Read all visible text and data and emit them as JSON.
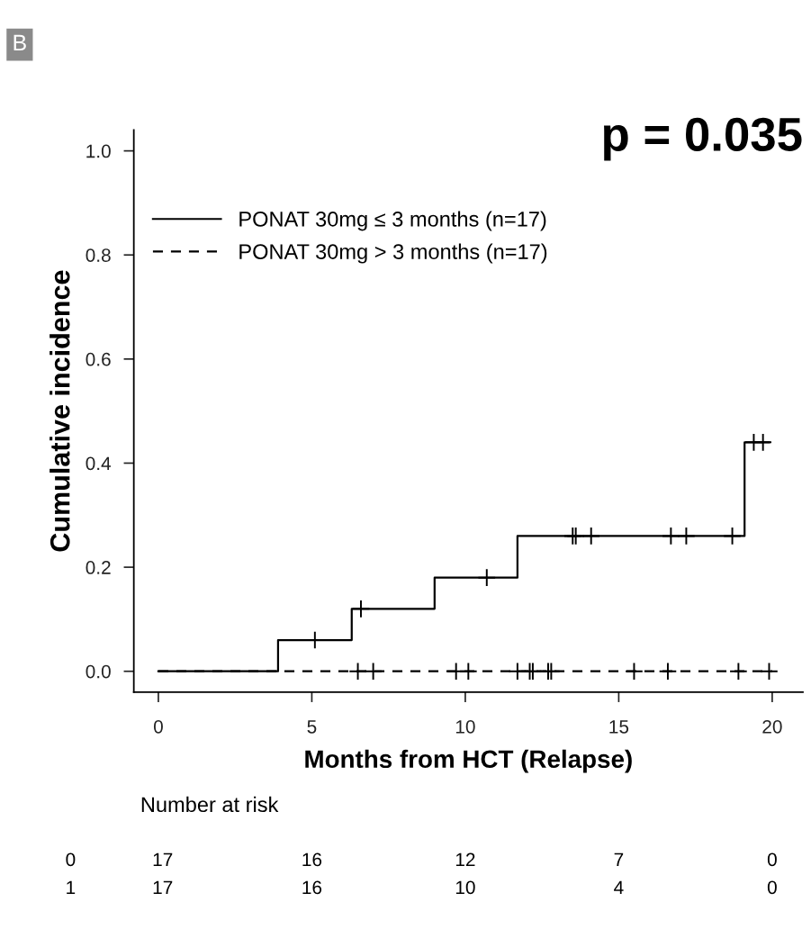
{
  "chart_data": {
    "type": "step",
    "xlabel": "Months from HCT (Relapse)",
    "ylabel": "Cumulative incidence",
    "xlim": [
      -0.8,
      21
    ],
    "xticks": [
      0,
      5,
      10,
      15,
      20
    ],
    "ylim": [
      -0.04,
      1.04
    ],
    "yticks": [
      {
        "value": 0,
        "label": "0.0"
      },
      {
        "value": 0.2,
        "label": "0.2"
      },
      {
        "value": 0.4,
        "label": "0.4"
      },
      {
        "value": 0.6,
        "label": "0.6"
      },
      {
        "value": 0.8,
        "label": "0.8"
      },
      {
        "value": 1,
        "label": "1.0"
      }
    ],
    "grid": false,
    "legend": "top left",
    "series": [
      {
        "name": "PONAT 30mg ≤ 3 months (n=17)",
        "color": "#000000",
        "line_style": "solid",
        "x": [
          0,
          3.9,
          6.3,
          9.0,
          11.7,
          19.1,
          19.9
        ],
        "values": [
          0,
          0.06,
          0.12,
          0.18,
          0.26,
          0.44,
          0.44
        ]
      },
      {
        "name": "PONAT 30mg > 3 months (n=17)",
        "color": "#000000",
        "line_style": "dashed",
        "x": [
          0,
          20
        ],
        "values": [
          0,
          0
        ]
      },
      {
        "type": "scatter",
        "marker": "cross",
        "color": "#000000",
        "x": [
          5.1,
          6.6,
          10.7,
          13.5,
          13.6,
          14.1,
          16.7,
          17.2,
          18.7,
          19.4,
          19.7
        ],
        "values": [
          0.06,
          0.12,
          0.18,
          0.26,
          0.26,
          0.26,
          0.26,
          0.26,
          0.26,
          0.44,
          0.44
        ]
      },
      {
        "type": "scatter",
        "marker": "cross",
        "color": "#000000",
        "x": [
          6.5,
          7.0,
          9.7,
          10.1,
          11.7,
          12.1,
          12.2,
          12.7,
          12.8,
          15.5,
          16.6,
          18.9,
          19.9
        ],
        "values": [
          0,
          0,
          0,
          0,
          0,
          0,
          0,
          0,
          0,
          0,
          0,
          0,
          0
        ]
      }
    ],
    "annotations": [
      "B",
      "p = 0.035",
      "Number at risk",
      "0",
      "17",
      "16",
      "12",
      "7",
      "0",
      "1",
      "17",
      "16",
      "10",
      "4",
      "0"
    ]
  }
}
